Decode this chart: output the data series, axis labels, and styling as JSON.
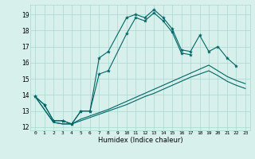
{
  "title": "",
  "xlabel": "Humidex (Indice chaleur)",
  "bg_color": "#d8f0ec",
  "grid_color": "#a8d8d0",
  "line_color": "#006666",
  "xlim": [
    -0.5,
    23.5
  ],
  "ylim": [
    11.8,
    19.6
  ],
  "yticks": [
    12,
    13,
    14,
    15,
    16,
    17,
    18,
    19
  ],
  "xticks": [
    0,
    1,
    2,
    3,
    4,
    5,
    6,
    7,
    8,
    9,
    10,
    11,
    12,
    13,
    14,
    15,
    16,
    17,
    18,
    19,
    20,
    21,
    22,
    23
  ],
  "series": [
    {
      "x": [
        0,
        1,
        2,
        3,
        4,
        5,
        6,
        7,
        8,
        10,
        11,
        12,
        13,
        14,
        15,
        16,
        17,
        18,
        19,
        20,
        21,
        22
      ],
      "y": [
        13.9,
        13.4,
        12.4,
        12.4,
        12.2,
        13.0,
        13.0,
        16.3,
        16.7,
        18.8,
        19.0,
        18.8,
        19.3,
        18.8,
        18.1,
        16.8,
        16.7,
        17.7,
        16.7,
        17.0,
        16.3,
        15.8
      ],
      "marker": true
    },
    {
      "x": [
        0,
        1,
        2,
        3,
        4,
        5,
        6,
        7,
        8,
        10,
        11,
        12,
        13,
        14,
        15,
        16,
        17
      ],
      "y": [
        13.9,
        13.4,
        12.4,
        12.4,
        12.2,
        13.0,
        13.0,
        15.3,
        15.5,
        17.8,
        18.8,
        18.6,
        19.1,
        18.6,
        17.9,
        16.6,
        16.5
      ],
      "marker": true
    },
    {
      "x": [
        0,
        1,
        2,
        3,
        4,
        5,
        6,
        7,
        8,
        9,
        10,
        11,
        12,
        13,
        14,
        15,
        16,
        17,
        18,
        19,
        20,
        21,
        22,
        23
      ],
      "y": [
        13.9,
        13.1,
        12.3,
        12.2,
        12.2,
        12.5,
        12.7,
        12.9,
        13.1,
        13.35,
        13.6,
        13.85,
        14.1,
        14.35,
        14.6,
        14.85,
        15.1,
        15.35,
        15.6,
        15.85,
        15.5,
        15.15,
        14.9,
        14.7
      ],
      "marker": false
    },
    {
      "x": [
        0,
        1,
        2,
        3,
        4,
        5,
        6,
        7,
        8,
        9,
        10,
        11,
        12,
        13,
        14,
        15,
        16,
        17,
        18,
        19,
        20,
        21,
        22,
        23
      ],
      "y": [
        13.9,
        13.1,
        12.3,
        12.2,
        12.2,
        12.4,
        12.6,
        12.8,
        13.0,
        13.2,
        13.4,
        13.65,
        13.9,
        14.1,
        14.35,
        14.6,
        14.85,
        15.1,
        15.3,
        15.5,
        15.2,
        14.85,
        14.6,
        14.4
      ],
      "marker": false
    }
  ]
}
